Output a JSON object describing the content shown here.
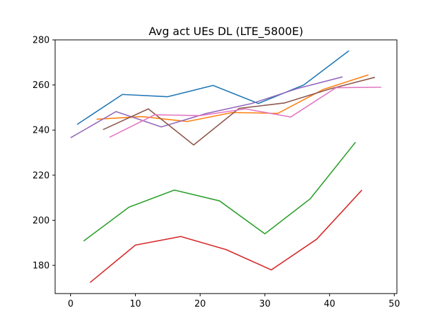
{
  "chart_data": {
    "type": "line",
    "title": "Avg act UEs DL (LTE_5800E)",
    "xlabel": "",
    "ylabel": "",
    "xlim": [
      -2.4,
      50.4
    ],
    "ylim": [
      167.5,
      280
    ],
    "xticks": [
      0,
      10,
      20,
      30,
      40,
      50
    ],
    "yticks": [
      180,
      200,
      220,
      240,
      260,
      280
    ],
    "grid": false,
    "legend": "none",
    "series": [
      {
        "color": "#1f77b4",
        "x": [
          1,
          8,
          15,
          22,
          29,
          36,
          43
        ],
        "y": [
          242.5,
          255.8,
          254.8,
          259.8,
          251.8,
          260.0,
          275.2
        ]
      },
      {
        "color": "#ff7f0e",
        "x": [
          4,
          11,
          18,
          25,
          32,
          39,
          46
        ],
        "y": [
          244.8,
          246.0,
          243.8,
          247.8,
          247.4,
          258.0,
          264.5
        ]
      },
      {
        "color": "#2ca02c",
        "x": [
          2,
          9,
          16,
          23,
          30,
          37,
          44
        ],
        "y": [
          190.8,
          205.8,
          213.4,
          208.6,
          194.0,
          209.5,
          234.6
        ]
      },
      {
        "color": "#d62728",
        "x": [
          3,
          10,
          17,
          24,
          31,
          38,
          45
        ],
        "y": [
          172.4,
          189.0,
          192.8,
          187.0,
          178.0,
          191.6,
          213.4
        ]
      },
      {
        "color": "#9467bd",
        "x": [
          0,
          7,
          14,
          21,
          28,
          35,
          42
        ],
        "y": [
          236.6,
          248.2,
          241.4,
          247.4,
          251.8,
          258.4,
          263.6
        ]
      },
      {
        "color": "#8c564b",
        "x": [
          5,
          12,
          19,
          26,
          33,
          40,
          47
        ],
        "y": [
          240.2,
          249.4,
          233.4,
          249.6,
          252.0,
          258.2,
          263.4
        ]
      },
      {
        "color": "#e377c2",
        "x": [
          6,
          13,
          20,
          27,
          34,
          41,
          48
        ],
        "y": [
          236.8,
          246.8,
          246.4,
          249.4,
          245.8,
          258.8,
          259.0
        ]
      }
    ]
  }
}
